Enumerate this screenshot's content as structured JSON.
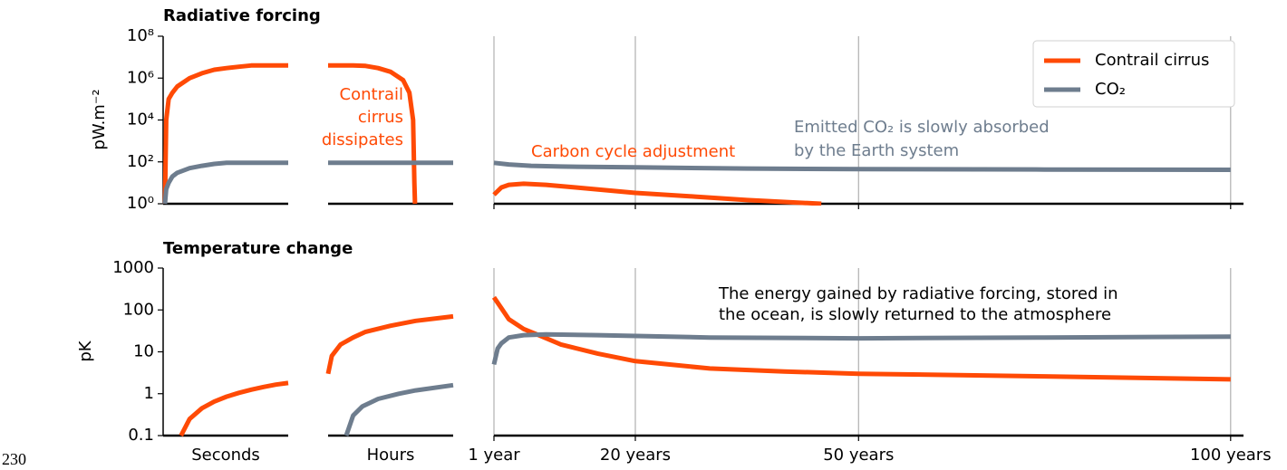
{
  "footer": "230",
  "chart_data": [
    {
      "type": "line",
      "title": "Radiative forcing",
      "ylabel": "pW.m⁻²",
      "yscale": "log",
      "ylim": [
        1,
        100000000
      ],
      "yticks": [
        {
          "value": 1,
          "label": "10⁰"
        },
        {
          "value": 100,
          "label": "10²"
        },
        {
          "value": 10000,
          "label": "10⁴"
        },
        {
          "value": 1000000,
          "label": "10⁶"
        },
        {
          "value": 100000000,
          "label": "10⁸"
        }
      ],
      "legend": "upper right",
      "series": [
        {
          "name": "Contrail cirrus",
          "color": "#ff4a05"
        },
        {
          "name": "CO₂",
          "color": "#6e7d8e"
        }
      ],
      "panels": [
        {
          "xlim": [
            0,
            10
          ],
          "series": [
            {
              "x": [
                0,
                0.1,
                0.3,
                0.6,
                1,
                2,
                3,
                4,
                5,
                6,
                7,
                8,
                9,
                10
              ],
              "values": [
                1,
                10000,
                100000,
                200000,
                400000,
                1000000,
                1700000,
                2500000,
                3000000,
                3500000,
                4000000,
                4000000,
                4000000,
                4000000
              ]
            },
            {
              "x": [
                0,
                0.1,
                0.3,
                0.6,
                1,
                2,
                3,
                4,
                5,
                6,
                7,
                8,
                9,
                10
              ],
              "values": [
                1,
                5,
                10,
                20,
                30,
                50,
                65,
                80,
                90,
                90,
                90,
                90,
                90,
                90
              ]
            }
          ]
        },
        {
          "xlim": [
            0,
            10
          ],
          "series": [
            {
              "x": [
                0,
                2,
                3,
                4,
                5,
                6,
                6.5,
                6.8,
                6.9,
                6.95
              ],
              "values": [
                4000000,
                4000000,
                3800000,
                3000000,
                2000000,
                800000,
                200000,
                10000,
                10,
                1
              ]
            },
            {
              "x": [
                0,
                10
              ],
              "values": [
                90,
                90
              ]
            }
          ]
        },
        {
          "xlim": [
            1,
            101
          ],
          "xticks": [
            1,
            20,
            50,
            100
          ],
          "grid": true,
          "series": [
            {
              "x": [
                1,
                2,
                3,
                5,
                8,
                12,
                20,
                28,
                35,
                45
              ],
              "values": [
                2.7,
                6,
                8,
                9,
                8,
                6,
                3.3,
                2.2,
                1.5,
                1
              ]
            },
            {
              "x": [
                1,
                3,
                6,
                10,
                20,
                35,
                50,
                75,
                100
              ],
              "values": [
                90,
                75,
                65,
                60,
                55,
                48,
                45,
                43,
                42
              ]
            }
          ]
        }
      ],
      "annotations": [
        {
          "text": [
            "Contrail",
            "cirrus",
            "dissipates"
          ],
          "color": "#ff4a05"
        },
        {
          "text": [
            "Carbon cycle adjustment"
          ],
          "color": "#ff4a05"
        },
        {
          "text": [
            "Emitted CO₂ is slowly absorbed",
            "by the Earth system"
          ],
          "color": "#6e7d8e"
        }
      ]
    },
    {
      "type": "line",
      "title": "Temperature change",
      "ylabel": "pK",
      "yscale": "log",
      "ylim": [
        0.1,
        1000
      ],
      "yticks": [
        0.1,
        1,
        10,
        100,
        1000
      ],
      "series": [
        {
          "name": "Contrail cirrus",
          "color": "#ff4a05"
        },
        {
          "name": "CO₂",
          "color": "#6e7d8e"
        }
      ],
      "panels": [
        {
          "xlabel": "Seconds",
          "xlim": [
            0,
            10
          ],
          "series": [
            {
              "x": [
                1.3,
                2,
                3,
                4,
                5,
                6,
                7,
                8,
                9,
                10
              ],
              "values": [
                0.1,
                0.25,
                0.45,
                0.65,
                0.85,
                1.05,
                1.25,
                1.45,
                1.65,
                1.8
              ]
            },
            {
              "x": [],
              "values": []
            }
          ]
        },
        {
          "xlabel": "Hours",
          "xlim": [
            0,
            10
          ],
          "series": [
            {
              "x": [
                0,
                0.3,
                1,
                2,
                3,
                5,
                7,
                10
              ],
              "values": [
                3,
                8,
                15,
                22,
                30,
                42,
                55,
                70
              ]
            },
            {
              "x": [
                1.45,
                2,
                2.75,
                4,
                5.65,
                7,
                10
              ],
              "values": [
                0.1,
                0.3,
                0.5,
                0.75,
                1,
                1.2,
                1.6
              ]
            }
          ]
        },
        {
          "xlim": [
            1,
            101
          ],
          "grid": true,
          "xticks": [
            {
              "value": 1,
              "label": "1 year"
            },
            {
              "value": 20,
              "label": "20 years"
            },
            {
              "value": 50,
              "label": "50 years"
            },
            {
              "value": 100,
              "label": "100 years"
            }
          ],
          "series": [
            {
              "x": [
                1,
                2,
                3,
                5,
                7,
                10,
                15,
                20,
                30,
                40,
                50,
                75,
                100
              ],
              "values": [
                200,
                110,
                60,
                35,
                25,
                15,
                9,
                6,
                4,
                3.4,
                3,
                2.6,
                2.2
              ]
            },
            {
              "x": [
                1,
                1.5,
                2,
                3,
                5,
                8,
                15,
                30,
                50,
                75,
                100
              ],
              "values": [
                5,
                12,
                16,
                22,
                25,
                26,
                25,
                22,
                21,
                22,
                23
              ]
            }
          ]
        }
      ],
      "annotations": [
        {
          "text": [
            "The energy gained by radiative forcing, stored in",
            "the ocean, is slowly returned to the atmosphere"
          ],
          "color": "#000000"
        }
      ]
    }
  ]
}
